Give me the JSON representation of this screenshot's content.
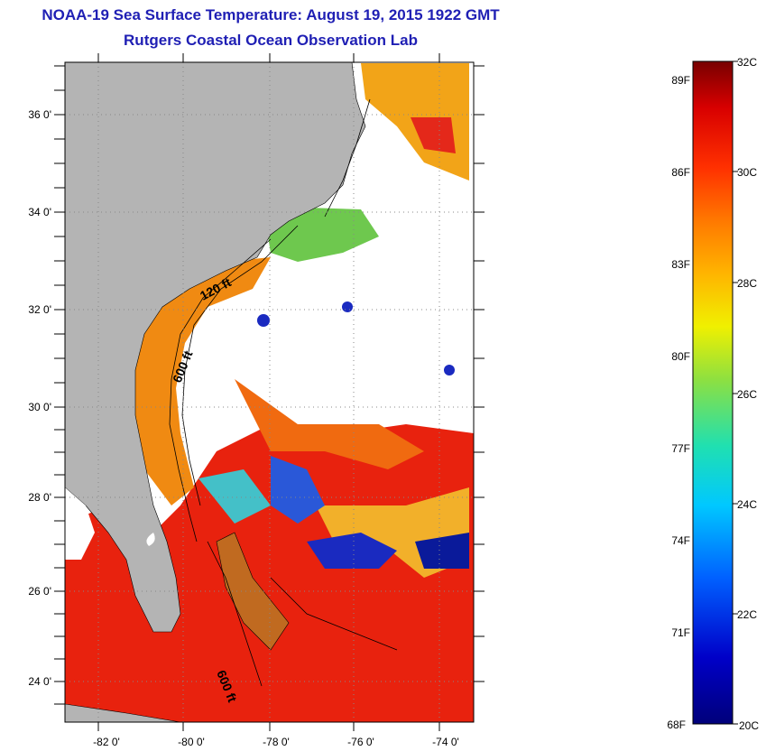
{
  "title": "NOAA-19 Sea Surface Temperature:  August 19, 2015 1922 GMT",
  "subtitle": "Rutgers Coastal Ocean Observation Lab",
  "map": {
    "lat_labels": [
      "36 0'",
      "34 0'",
      "32 0'",
      "30 0'",
      "28 0'",
      "26 0'",
      "24 0'"
    ],
    "lon_labels": [
      "-82 0'",
      "-80 0'",
      "-78 0'",
      "-76 0'",
      "-74 0'"
    ],
    "contour_labels": [
      "120 ft",
      "600 ft",
      "600 ft"
    ],
    "land_color": "#b4b4b4",
    "ocean_no_data_color": "#ffffff"
  },
  "colorbar": {
    "f_labels": [
      "89F",
      "86F",
      "83F",
      "80F",
      "77F",
      "74F",
      "71F",
      "68F"
    ],
    "c_labels": [
      "32C",
      "30C",
      "28C",
      "26C",
      "24C",
      "22C",
      "20C"
    ],
    "range_c": [
      20,
      32
    ],
    "range_f": [
      68,
      89.6
    ]
  },
  "colors": {
    "title": "#1f1fb4",
    "warm": "#e8220e",
    "cold": "#0a1a9a"
  }
}
